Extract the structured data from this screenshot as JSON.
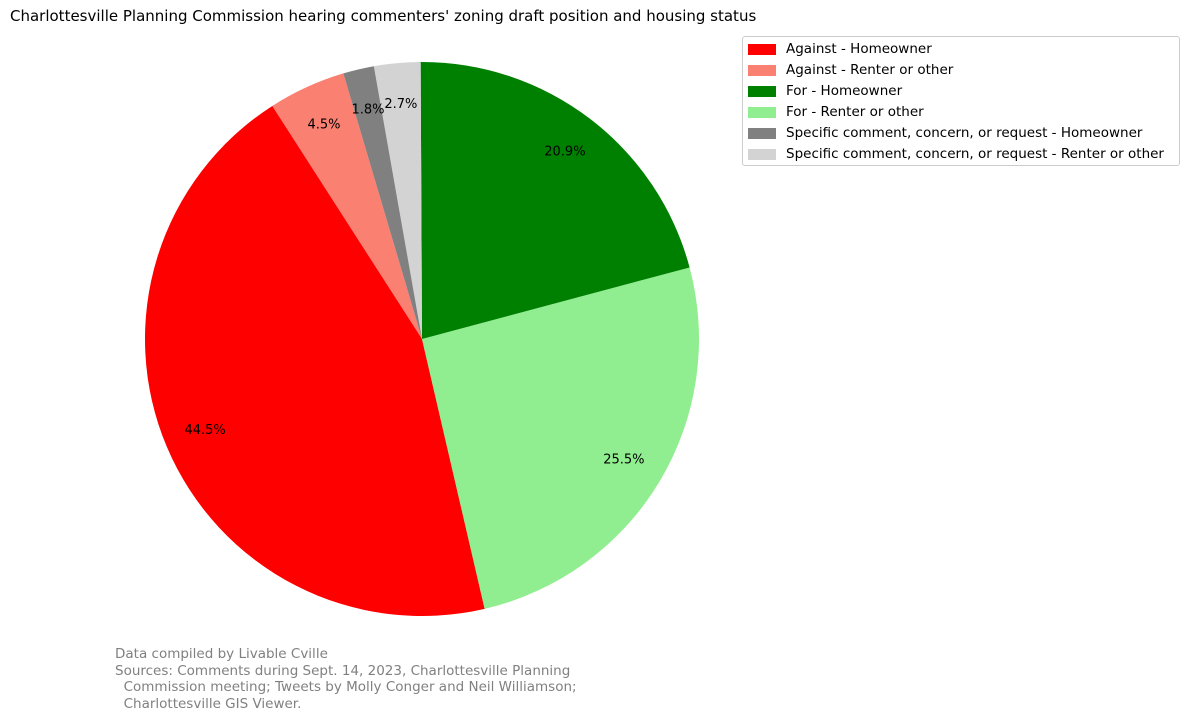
{
  "chart_data": {
    "type": "pie",
    "title": "Charlottesville Planning Commission hearing commenters' zoning draft position and housing status",
    "categories": [
      "Against - Homeowner",
      "Against - Renter or other",
      "For - Homeowner",
      "For - Renter or other",
      "Specific comment, concern, or request - Homeowner",
      "Specific comment, concern, or request - Renter or other"
    ],
    "values": [
      44.5,
      4.5,
      20.9,
      25.5,
      1.8,
      2.7
    ],
    "labels": [
      "44.5%",
      "4.5%",
      "20.9%",
      "25.5%",
      "1.8%",
      "2.7%"
    ],
    "colors": [
      "#ff0000",
      "#fa8072",
      "#008000",
      "#90ee90",
      "#808080",
      "#d3d3d3"
    ],
    "draw_order": [
      1,
      0,
      3,
      2,
      5,
      4
    ],
    "legend_position": "upper-right-outside"
  },
  "footnote": [
    "Data compiled by Livable Cville",
    "Sources: Comments during Sept. 14, 2023, Charlottesville Planning",
    "  Commission meeting; Tweets by Molly Conger and Neil Williamson;",
    "  Charlottesville GIS Viewer."
  ]
}
